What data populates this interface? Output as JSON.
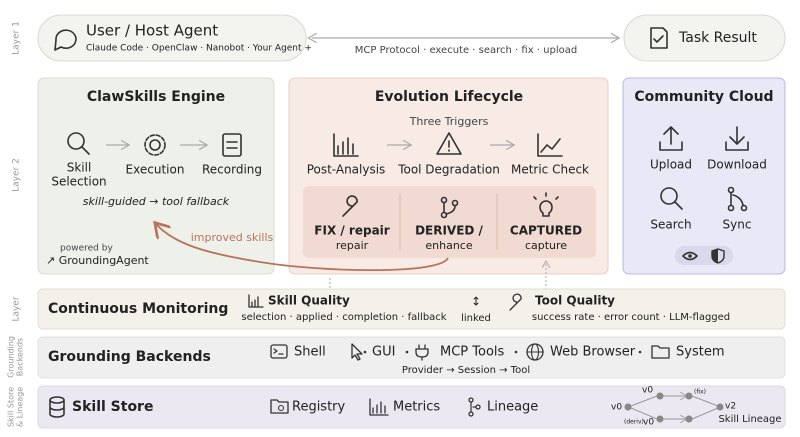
{
  "layers": [
    [
      "Layer 1"
    ],
    [
      "Layer 2"
    ],
    [
      "Layer"
    ],
    [
      "Grounding",
      "Backends"
    ],
    [
      "Skill Store",
      "& Lineage"
    ]
  ],
  "top": {
    "agent_title": "User / Host Agent",
    "agent_subtitle": "Claude Code · OpenClaw · Nanobot · Your Agent +",
    "protocol": "MCP Protocol · execute · search · fix · upload",
    "result": "Task Result"
  },
  "engine": {
    "title": "ClawSkills Engine",
    "steps": [
      [
        "Skill",
        "Selection"
      ],
      [
        "Execution"
      ],
      [
        "Recording"
      ]
    ],
    "note": "skill-guided → tool fallback",
    "powered_by": "powered by",
    "grounding_agent": "↗ GroundingAgent",
    "feedback": "improved skills"
  },
  "evolution": {
    "title": "Evolution Lifecycle",
    "triggers_title": "Three Triggers",
    "triggers": [
      "Post-Analysis",
      "Tool Degradation",
      "Metric Check"
    ],
    "modes": [
      {
        "name": "FIX / repair",
        "sub": "repair"
      },
      {
        "name": "DERIVED /",
        "sub": "enhance"
      },
      {
        "name": "CAPTURED",
        "sub": "capture"
      }
    ]
  },
  "cloud": {
    "title": "Community Cloud",
    "actions": [
      "Upload",
      "Download",
      "Search",
      "Sync"
    ]
  },
  "monitoring": {
    "title": "Continuous Monitoring",
    "skill_quality": "Skill Quality",
    "skill_metrics": "selection · applied · completion · fallback",
    "link_arrow": "↕",
    "link": "linked",
    "tool_quality": "Tool Quality",
    "tool_metrics": "success rate · error count · LLM-flagged"
  },
  "grounding": {
    "title": "Grounding Backends",
    "backends": [
      "Shell",
      "GUI",
      "MCP Tools",
      "Web Browser",
      "System"
    ],
    "flow": "Provider → Session → Tool"
  },
  "store": {
    "title": "Skill Store",
    "items": [
      "Registry",
      "Metrics",
      "Lineage"
    ],
    "lineage": {
      "nodes": [
        "v0",
        "v0",
        "v0",
        "v2"
      ],
      "edges": [
        "(fix)",
        "(deriv)"
      ],
      "caption": "Skill Lineage"
    }
  }
}
